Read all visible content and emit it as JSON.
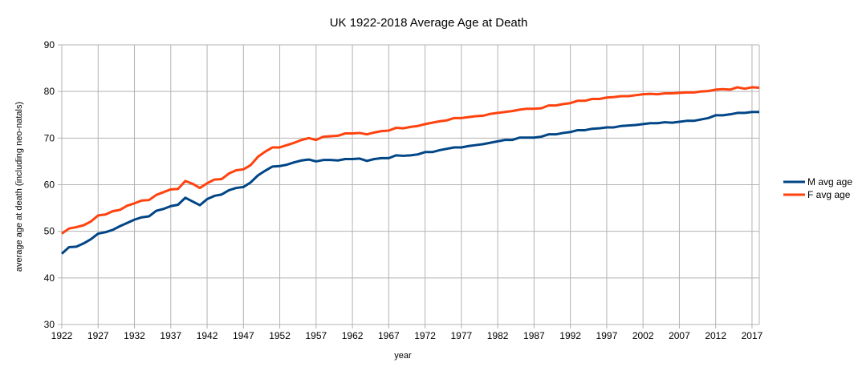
{
  "chart_data": {
    "type": "line",
    "title": "UK 1922-2018 Average Age at Death",
    "xlabel": "year",
    "ylabel": "average age at death (including neo-natals)",
    "xlim": [
      1922,
      2018
    ],
    "ylim": [
      30,
      90
    ],
    "y_ticks": [
      "30",
      "40",
      "50",
      "60",
      "70",
      "80",
      "90"
    ],
    "x_ticks": [
      "1922",
      "1927",
      "1932",
      "1937",
      "1942",
      "1947",
      "1952",
      "1957",
      "1962",
      "1967",
      "1972",
      "1977",
      "1982",
      "1987",
      "1992",
      "1997",
      "2002",
      "2007",
      "2012",
      "2017"
    ],
    "grid": true,
    "legend_position": "right",
    "x": [
      1922,
      1923,
      1924,
      1925,
      1926,
      1927,
      1928,
      1929,
      1930,
      1931,
      1932,
      1933,
      1934,
      1935,
      1936,
      1937,
      1938,
      1939,
      1940,
      1941,
      1942,
      1943,
      1944,
      1945,
      1946,
      1947,
      1948,
      1949,
      1950,
      1951,
      1952,
      1953,
      1954,
      1955,
      1956,
      1957,
      1958,
      1959,
      1960,
      1961,
      1962,
      1963,
      1964,
      1965,
      1966,
      1967,
      1968,
      1969,
      1970,
      1971,
      1972,
      1973,
      1974,
      1975,
      1976,
      1977,
      1978,
      1979,
      1980,
      1981,
      1982,
      1983,
      1984,
      1985,
      1986,
      1987,
      1988,
      1989,
      1990,
      1991,
      1992,
      1993,
      1994,
      1995,
      1996,
      1997,
      1998,
      1999,
      2000,
      2001,
      2002,
      2003,
      2004,
      2005,
      2006,
      2007,
      2008,
      2009,
      2010,
      2011,
      2012,
      2013,
      2014,
      2015,
      2016,
      2017,
      2018
    ],
    "series": [
      {
        "name": "M avg age",
        "color": "#004586",
        "values": [
          45.2,
          46.6,
          46.7,
          47.4,
          48.3,
          49.5,
          49.8,
          50.3,
          51.1,
          51.8,
          52.5,
          53.0,
          53.2,
          54.4,
          54.8,
          55.4,
          55.7,
          57.2,
          56.4,
          55.6,
          56.9,
          57.6,
          57.9,
          58.8,
          59.3,
          59.5,
          60.5,
          62.0,
          63.0,
          63.9,
          64.0,
          64.3,
          64.8,
          65.2,
          65.4,
          65.0,
          65.3,
          65.3,
          65.2,
          65.5,
          65.5,
          65.6,
          65.1,
          65.5,
          65.7,
          65.7,
          66.3,
          66.2,
          66.3,
          66.5,
          67.0,
          67.0,
          67.4,
          67.7,
          68.0,
          68.0,
          68.3,
          68.5,
          68.7,
          69.0,
          69.3,
          69.6,
          69.6,
          70.1,
          70.1,
          70.1,
          70.3,
          70.8,
          70.8,
          71.1,
          71.3,
          71.7,
          71.7,
          72.0,
          72.1,
          72.3,
          72.3,
          72.6,
          72.7,
          72.8,
          73.0,
          73.2,
          73.2,
          73.4,
          73.3,
          73.5,
          73.7,
          73.7,
          74.0,
          74.3,
          74.9,
          74.9,
          75.1,
          75.4,
          75.4,
          75.6,
          75.6
        ]
      },
      {
        "name": "F avg age",
        "color": "#ff420e",
        "values": [
          49.5,
          50.6,
          50.9,
          51.3,
          52.1,
          53.4,
          53.6,
          54.3,
          54.6,
          55.5,
          56.0,
          56.6,
          56.7,
          57.8,
          58.4,
          59.0,
          59.1,
          60.8,
          60.2,
          59.3,
          60.3,
          61.1,
          61.2,
          62.4,
          63.1,
          63.3,
          64.2,
          66.0,
          67.1,
          68.0,
          68.0,
          68.5,
          69.0,
          69.6,
          70.0,
          69.6,
          70.3,
          70.4,
          70.5,
          71.0,
          71.0,
          71.1,
          70.8,
          71.2,
          71.5,
          71.6,
          72.2,
          72.1,
          72.4,
          72.6,
          73.0,
          73.3,
          73.6,
          73.8,
          74.3,
          74.3,
          74.5,
          74.7,
          74.8,
          75.2,
          75.4,
          75.6,
          75.8,
          76.1,
          76.3,
          76.3,
          76.4,
          77.0,
          77.0,
          77.3,
          77.5,
          78.0,
          78.0,
          78.4,
          78.4,
          78.7,
          78.8,
          79.0,
          79.0,
          79.2,
          79.4,
          79.5,
          79.4,
          79.6,
          79.6,
          79.7,
          79.8,
          79.8,
          80.0,
          80.1,
          80.4,
          80.5,
          80.4,
          80.9,
          80.6,
          80.9,
          80.8
        ]
      }
    ]
  }
}
